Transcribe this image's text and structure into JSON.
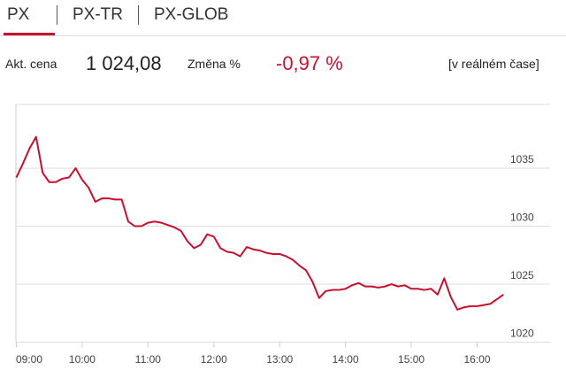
{
  "tabs": [
    "PX",
    "PX-TR",
    "PX-GLOB"
  ],
  "quote": {
    "price_label": "Akt. cena",
    "price": "1 024,08",
    "change_label": "Změna %",
    "change": "-0,97 %",
    "realtime": "[v reálném čase]"
  },
  "chart_data": {
    "type": "line",
    "color": "#c8102e",
    "grid": true,
    "x": [
      9,
      9.1,
      9.2,
      9.3,
      9.4,
      9.5,
      9.6,
      9.7,
      9.8,
      9.9,
      10,
      10.1,
      10.2,
      10.3,
      10.4,
      10.5,
      10.6,
      10.7,
      10.8,
      10.9,
      11,
      11.1,
      11.2,
      11.3,
      11.4,
      11.5,
      11.6,
      11.7,
      11.8,
      11.9,
      12,
      12.1,
      12.2,
      12.3,
      12.4,
      12.5,
      12.6,
      12.7,
      12.8,
      12.9,
      13,
      13.1,
      13.2,
      13.3,
      13.4,
      13.5,
      13.6,
      13.7,
      13.8,
      13.9,
      14,
      14.1,
      14.2,
      14.3,
      14.4,
      14.5,
      14.6,
      14.7,
      14.8,
      14.9,
      15,
      15.1,
      15.2,
      15.3,
      15.4,
      15.5,
      15.6,
      15.7,
      15.8,
      15.9,
      16,
      16.1,
      16.2,
      16.3,
      16.4
    ],
    "values": [
      1034.2,
      1035.4,
      1036.7,
      1037.7,
      1034.6,
      1033.8,
      1033.8,
      1034.1,
      1034.2,
      1035.0,
      1034.0,
      1033.3,
      1032.1,
      1032.4,
      1032.4,
      1032.3,
      1032.3,
      1030.4,
      1030.0,
      1030.0,
      1030.3,
      1030.4,
      1030.3,
      1030.1,
      1029.9,
      1029.6,
      1028.7,
      1028.1,
      1028.4,
      1029.3,
      1029.1,
      1028.1,
      1027.8,
      1027.7,
      1027.4,
      1028.2,
      1028.0,
      1027.9,
      1027.7,
      1027.6,
      1027.6,
      1027.4,
      1027.1,
      1026.6,
      1026.2,
      1025.2,
      1023.8,
      1024.4,
      1024.5,
      1024.5,
      1024.6,
      1024.9,
      1025.1,
      1024.8,
      1024.8,
      1024.7,
      1024.8,
      1025.0,
      1024.8,
      1024.9,
      1024.6,
      1024.6,
      1024.5,
      1024.6,
      1024.1,
      1025.5,
      1023.9,
      1022.8,
      1023.0,
      1023.1,
      1023.1,
      1023.2,
      1023.3,
      1023.7,
      1024.1
    ],
    "xlim": [
      9,
      16.45
    ],
    "ylim": [
      1020,
      1040.5
    ],
    "xticks": [
      {
        "value": 9,
        "label": "09:00"
      },
      {
        "value": 10,
        "label": "10:00"
      },
      {
        "value": 11,
        "label": "11:00"
      },
      {
        "value": 12,
        "label": "12:00"
      },
      {
        "value": 13,
        "label": "13:00"
      },
      {
        "value": 14,
        "label": "14:00"
      },
      {
        "value": 15,
        "label": "15:00"
      },
      {
        "value": 16,
        "label": "16:00"
      }
    ],
    "yticks": [
      1020,
      1025,
      1030,
      1035
    ]
  }
}
